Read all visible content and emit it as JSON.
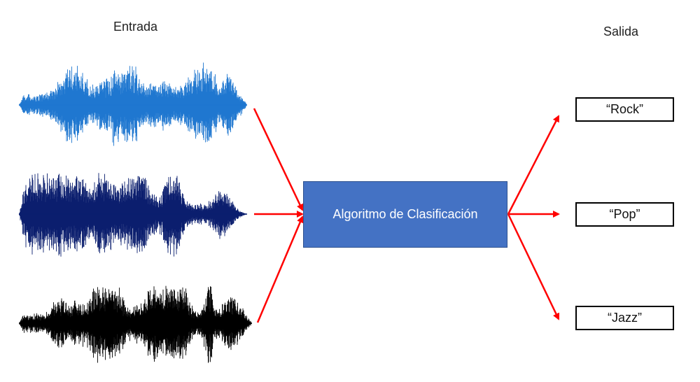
{
  "labels": {
    "input": "Entrada",
    "output": "Salida"
  },
  "algorithm": {
    "label": "Algoritmo de Clasificación",
    "color": "#4472c4"
  },
  "inputs": [
    {
      "name": "waveform-blue",
      "color": "#1f77d0"
    },
    {
      "name": "waveform-navy",
      "color": "#0b1e6e"
    },
    {
      "name": "waveform-black",
      "color": "#000000"
    }
  ],
  "outputs": [
    {
      "label": "“Rock”"
    },
    {
      "label": "“Pop”"
    },
    {
      "label": "“Jazz”"
    }
  ],
  "arrow_color": "#ff0000"
}
